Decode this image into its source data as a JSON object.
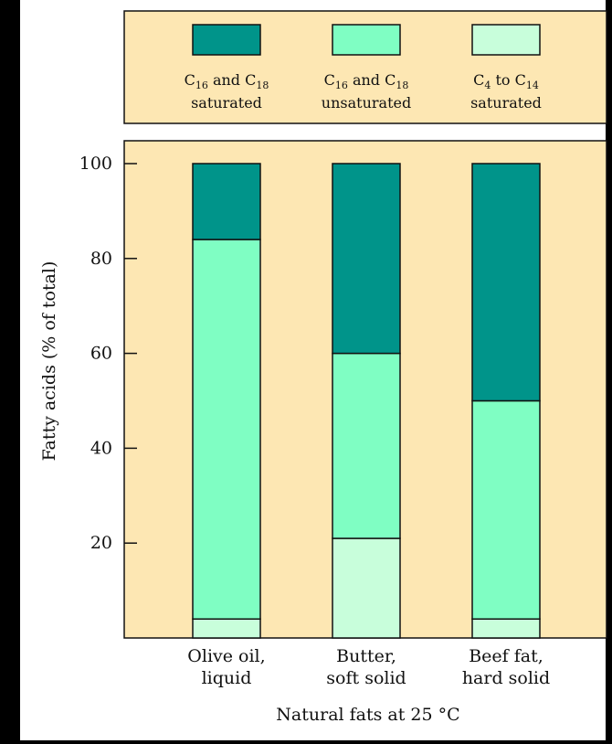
{
  "chart_data": {
    "type": "bar",
    "stacked": true,
    "title": "",
    "xlabel": "Natural fats at 25 °C",
    "ylabel": "Fatty acids (% of total)",
    "ylim": [
      0,
      100
    ],
    "yticks": [
      "20",
      "40",
      "60",
      "80",
      "100"
    ],
    "grid": false,
    "legend_position": "top",
    "categories": [
      {
        "line1": "Olive oil,",
        "line2": "liquid"
      },
      {
        "line1": "Butter,",
        "line2": "soft solid"
      },
      {
        "line1": "Beef fat,",
        "line2": "hard solid"
      }
    ],
    "series": [
      {
        "name": "C4 to C14 saturated",
        "legend_line1": [
          "C",
          "4",
          " to C",
          "14"
        ],
        "legend_line2": "saturated",
        "color": "#c8fedb",
        "values": [
          4,
          21,
          4
        ]
      },
      {
        "name": "C16 and C18 unsaturated",
        "legend_line1": [
          "C",
          "16",
          " and C",
          "18"
        ],
        "legend_line2": "unsaturated",
        "color": "#7ffec3",
        "values": [
          80,
          39,
          46
        ]
      },
      {
        "name": "C16 and C18 saturated",
        "legend_line1": [
          "C",
          "16",
          " and C",
          "18"
        ],
        "legend_line2": "saturated",
        "color": "#00948a",
        "values": [
          16,
          40,
          50
        ]
      }
    ],
    "legend_order": [
      2,
      1,
      0
    ],
    "colors": {
      "background": "#fde7b3",
      "axis": "#111111",
      "page": "#000000"
    }
  }
}
